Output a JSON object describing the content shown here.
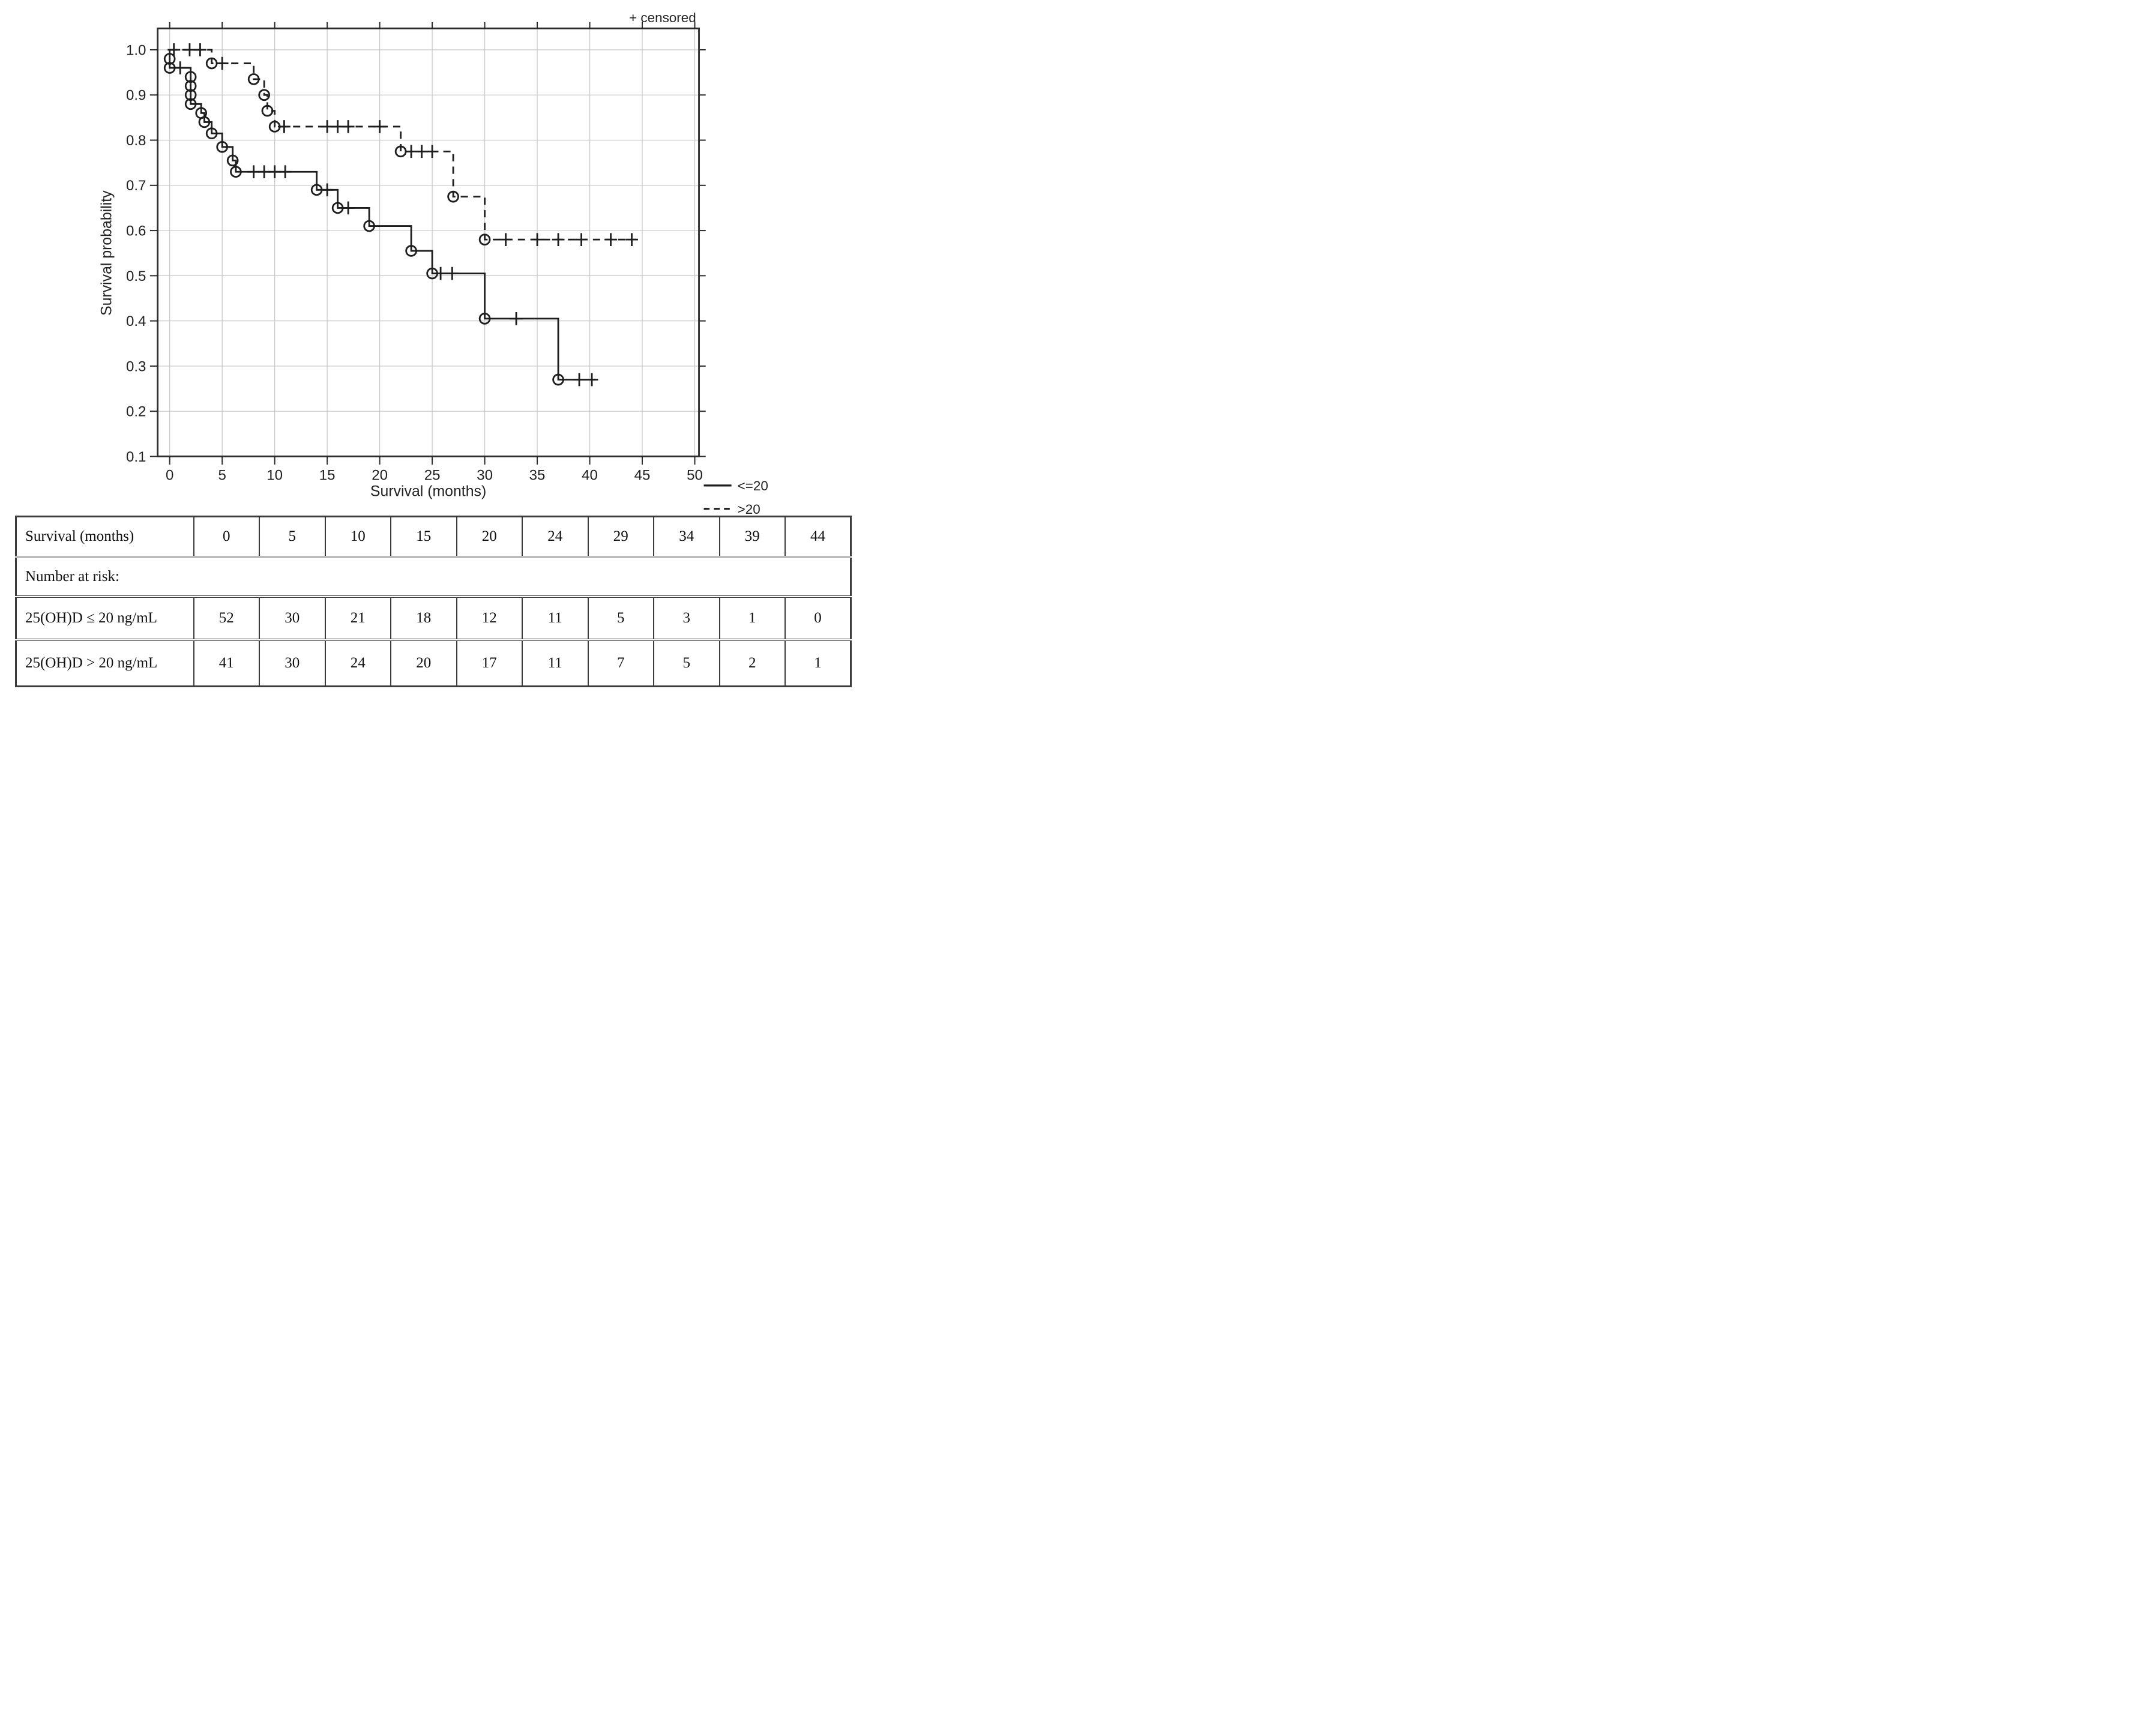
{
  "figure": {
    "censored_note": "+ censored",
    "x_title": "Survival (months)",
    "y_title": "Survival probability",
    "legend": [
      {
        "label": "<=20",
        "style": "solid"
      },
      {
        "label": ">20",
        "style": "dashed"
      }
    ]
  },
  "colors": {
    "line": "#1d1d1d",
    "frame": "#2b2b2b",
    "grid": "#c6c6c6",
    "text": "#222222",
    "background": "#ffffff"
  },
  "chart_data": {
    "type": "line",
    "subtype": "kaplan-meier-step",
    "title": "",
    "xlabel": "Survival (months)",
    "ylabel": "Survival probability",
    "xlim": [
      0,
      50
    ],
    "ylim": [
      0.1,
      1.0
    ],
    "xticks": [
      0,
      5,
      10,
      15,
      20,
      25,
      30,
      35,
      40,
      45,
      50
    ],
    "yticks": [
      1.0,
      0.9,
      0.8,
      0.7,
      0.6,
      0.5,
      0.4,
      0.3,
      0.2,
      0.1
    ],
    "ytick_labels": [
      "1.0",
      "0.9",
      "0.8",
      "0.7",
      "0.6",
      "0.5",
      "0.4",
      "0.3",
      "0.2",
      "0.1"
    ],
    "grid": true,
    "legend_position": "bottom-right-outside",
    "censored_marker": "+",
    "event_marker": "circle",
    "series": [
      {
        "name": "<=20",
        "line_style": "solid",
        "start": [
          0,
          1.0
        ],
        "events": [
          [
            0,
            0.98
          ],
          [
            0,
            0.96
          ],
          [
            2,
            0.94
          ],
          [
            2,
            0.92
          ],
          [
            2,
            0.9
          ],
          [
            2,
            0.88
          ],
          [
            3,
            0.86
          ],
          [
            3.3,
            0.84
          ],
          [
            4,
            0.815
          ],
          [
            5,
            0.785
          ],
          [
            6,
            0.755
          ],
          [
            6.3,
            0.73
          ],
          [
            14,
            0.69
          ],
          [
            16,
            0.65
          ],
          [
            19,
            0.61
          ],
          [
            23,
            0.555
          ],
          [
            25,
            0.505
          ],
          [
            30,
            0.405
          ],
          [
            37,
            0.27
          ]
        ],
        "censors": [
          [
            1,
            0.96
          ],
          [
            8,
            0.73
          ],
          [
            9,
            0.73
          ],
          [
            10,
            0.73
          ],
          [
            11,
            0.73
          ],
          [
            15,
            0.69
          ],
          [
            17,
            0.65
          ],
          [
            25.8,
            0.505
          ],
          [
            26.9,
            0.505
          ],
          [
            33,
            0.405
          ],
          [
            39,
            0.27
          ],
          [
            40.2,
            0.27
          ]
        ],
        "end_time": 40.6
      },
      {
        "name": ">20",
        "line_style": "dashed",
        "start": [
          0,
          1.0
        ],
        "events": [
          [
            4,
            0.97
          ],
          [
            8,
            0.935
          ],
          [
            9,
            0.9
          ],
          [
            9.3,
            0.865
          ],
          [
            10,
            0.83
          ],
          [
            22,
            0.775
          ],
          [
            27,
            0.675
          ],
          [
            30,
            0.58
          ]
        ],
        "censors": [
          [
            0.4,
            1.0
          ],
          [
            1.9,
            1.0
          ],
          [
            2.9,
            1.0
          ],
          [
            5,
            0.97
          ],
          [
            10.9,
            0.83
          ],
          [
            15,
            0.83
          ],
          [
            16,
            0.83
          ],
          [
            17,
            0.83
          ],
          [
            20,
            0.83
          ],
          [
            23,
            0.775
          ],
          [
            24,
            0.775
          ],
          [
            25,
            0.775
          ],
          [
            32,
            0.58
          ],
          [
            35,
            0.58
          ],
          [
            37,
            0.58
          ],
          [
            39.2,
            0.58
          ],
          [
            42,
            0.58
          ],
          [
            44,
            0.58
          ]
        ],
        "end_time": 44.4
      }
    ]
  },
  "table": {
    "columns": [
      "Survival (months)",
      "0",
      "5",
      "10",
      "15",
      "20",
      "24",
      "29",
      "34",
      "39",
      "44"
    ],
    "section_label": "Number at risk:",
    "rows": [
      {
        "label": "25(OH)D ≤ 20 ng/mL",
        "values": [
          "52",
          "30",
          "21",
          "18",
          "12",
          "11",
          "5",
          "3",
          "1",
          "0"
        ]
      },
      {
        "label": "25(OH)D > 20 ng/mL",
        "values": [
          "41",
          "30",
          "24",
          "20",
          "17",
          "11",
          "7",
          "5",
          "2",
          "1"
        ]
      }
    ]
  }
}
